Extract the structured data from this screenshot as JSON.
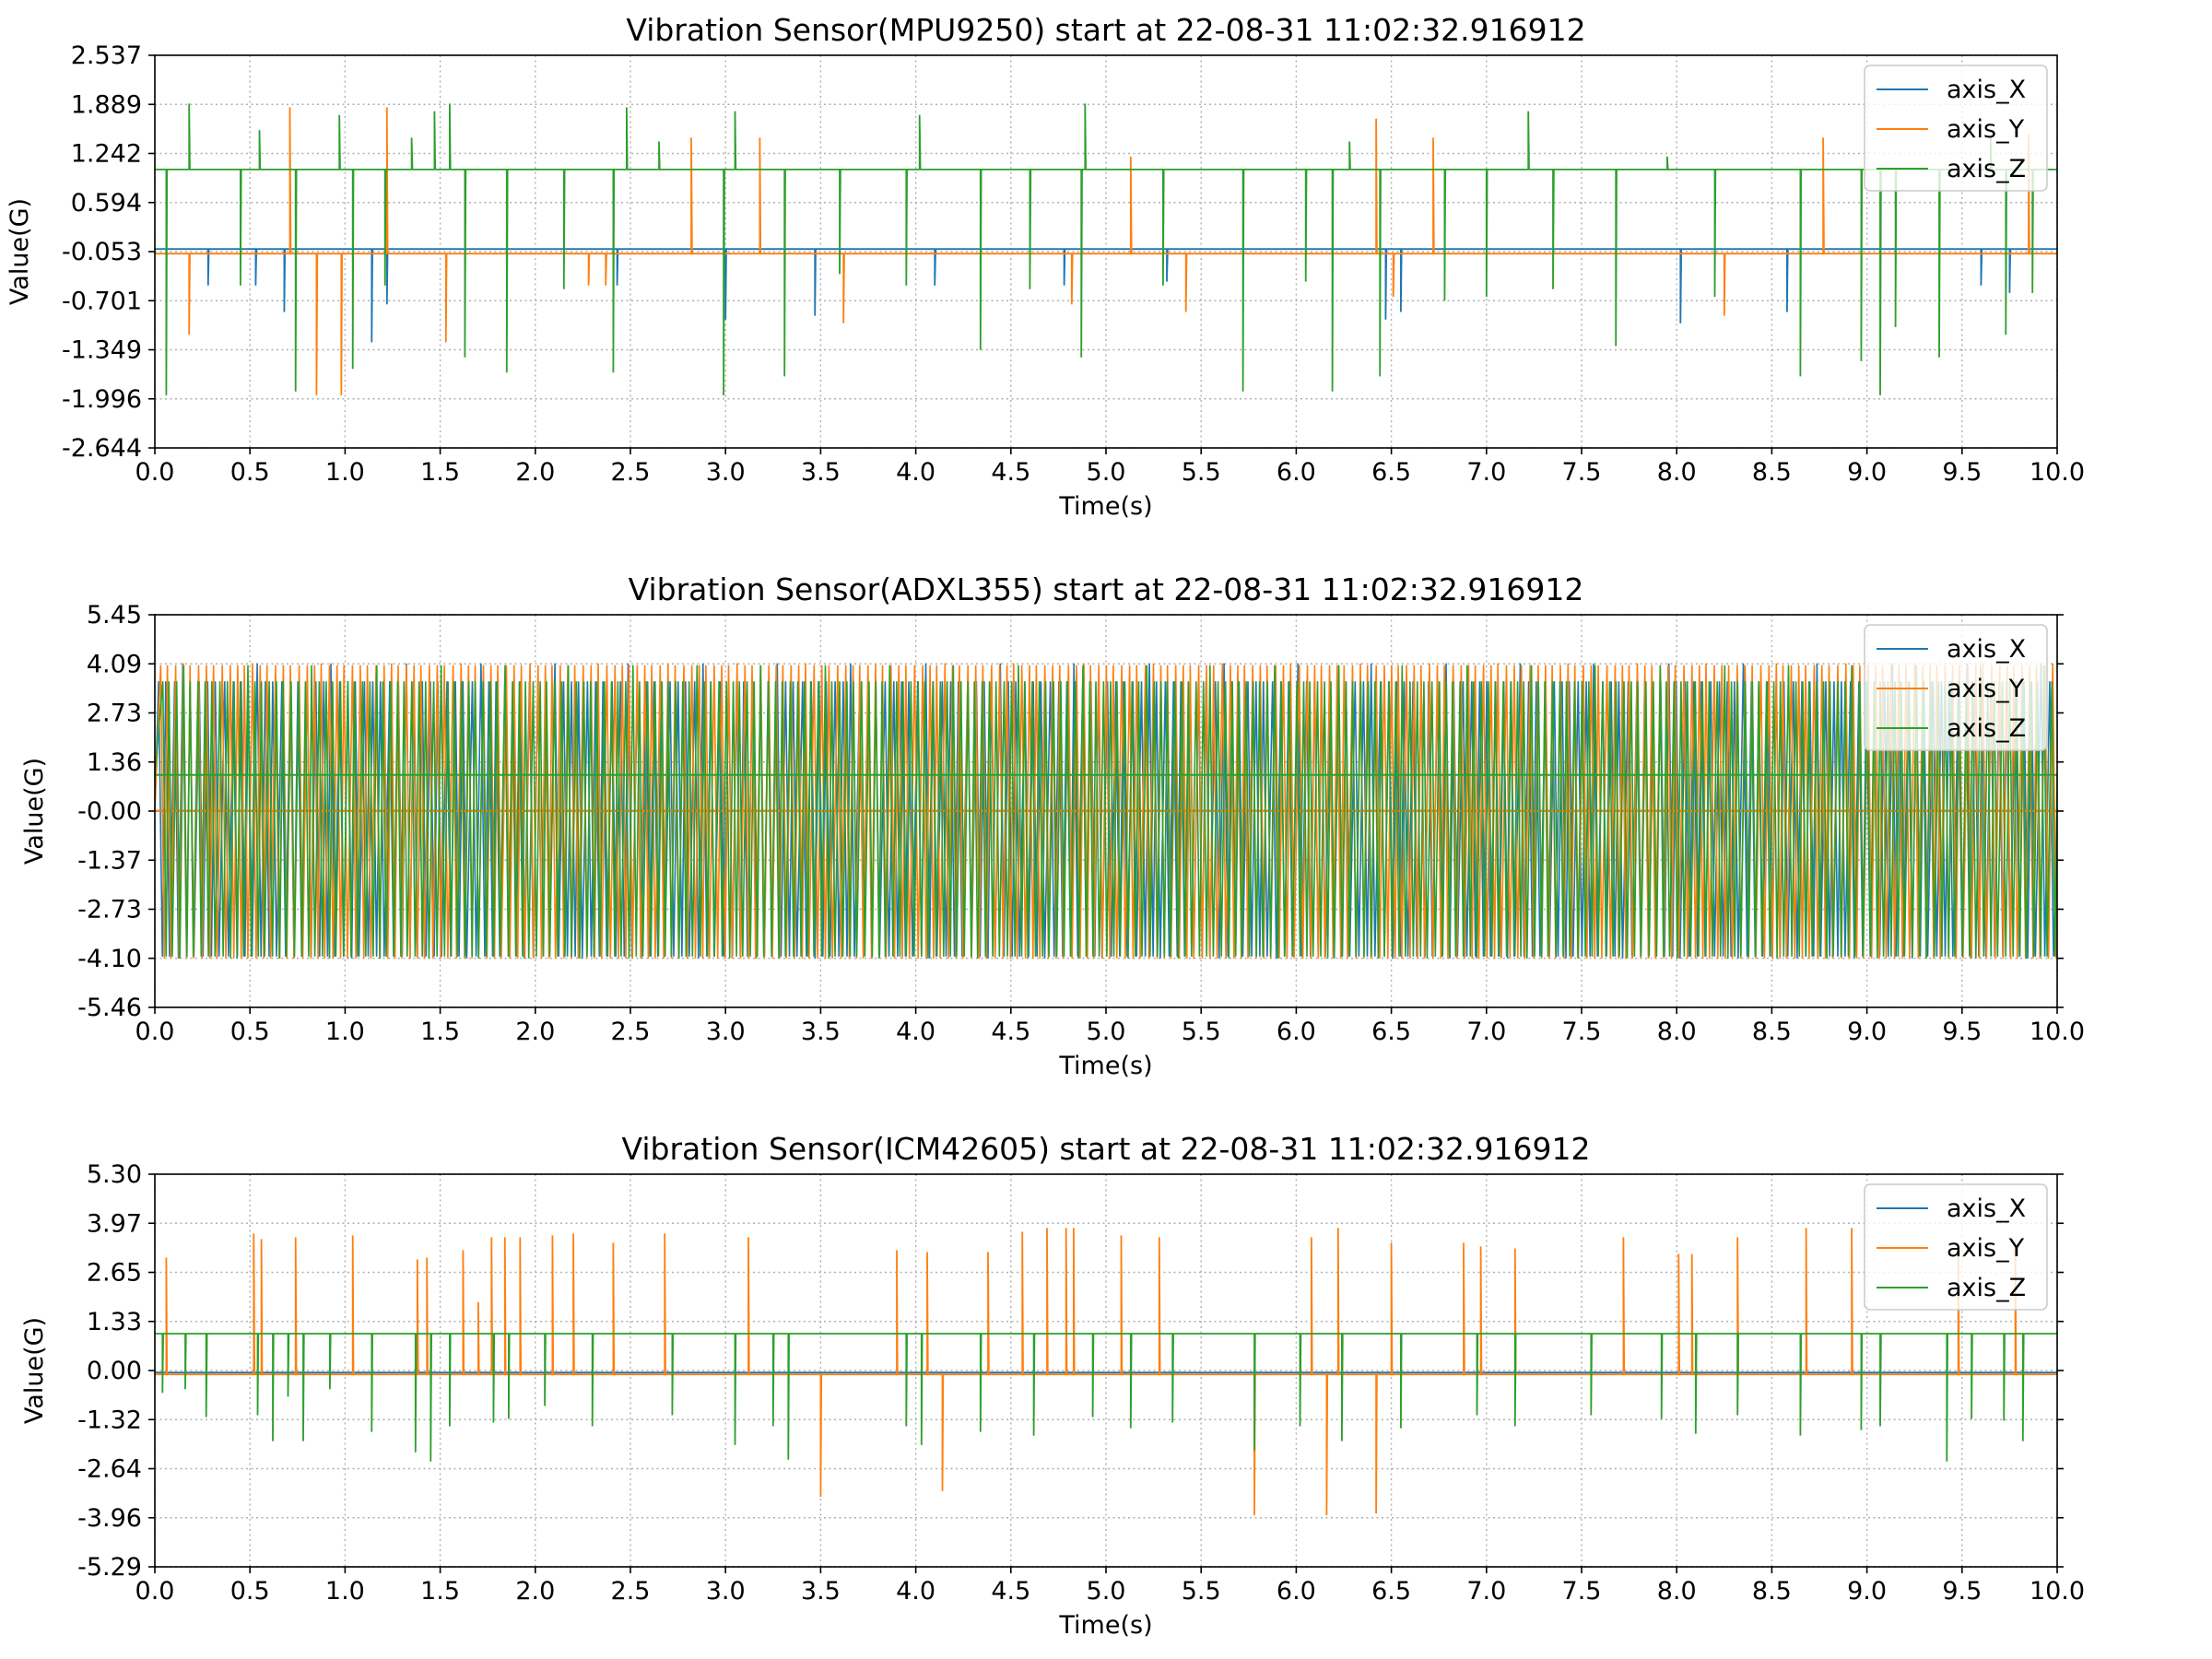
{
  "chart_data": [
    {
      "type": "line",
      "title": "Vibration Sensor(MPU9250) start at 22-08-31 11:02:32.916912",
      "xlabel": "Time(s)",
      "ylabel": "Value(G)",
      "xlim": [
        0.0,
        10.0
      ],
      "ylim": [
        -2.644,
        2.537
      ],
      "xticks": [
        "0.0",
        "0.5",
        "1.0",
        "1.5",
        "2.0",
        "2.5",
        "3.0",
        "3.5",
        "4.0",
        "4.5",
        "5.0",
        "5.5",
        "6.0",
        "6.5",
        "7.0",
        "7.5",
        "8.0",
        "8.5",
        "9.0",
        "9.5",
        "10.0"
      ],
      "yticks": [
        "2.537",
        "1.889",
        "1.242",
        "0.594",
        "-0.053",
        "-0.701",
        "-1.349",
        "-1.996",
        "-2.644"
      ],
      "grid": true,
      "legend_position": "top-right",
      "series": [
        {
          "name": "axis_X",
          "color": "#1f77b4",
          "baseline": -0.02,
          "spikes": [
            [
              0.28,
              -0.5
            ],
            [
              0.53,
              -0.5
            ],
            [
              0.68,
              -0.85
            ],
            [
              1.14,
              -1.25
            ],
            [
              1.22,
              -0.75
            ],
            [
              2.43,
              -0.5
            ],
            [
              3.0,
              -0.95
            ],
            [
              3.47,
              -0.9
            ],
            [
              4.1,
              -0.5
            ],
            [
              4.78,
              -0.5
            ],
            [
              5.32,
              -0.45
            ],
            [
              6.47,
              -0.95
            ],
            [
              6.55,
              -0.85
            ],
            [
              8.02,
              -1.0
            ],
            [
              8.58,
              -0.85
            ],
            [
              9.6,
              -0.5
            ],
            [
              9.75,
              -0.6
            ]
          ]
        },
        {
          "name": "axis_Y",
          "color": "#ff7f0e",
          "baseline": -0.08,
          "spikes": [
            [
              0.18,
              -1.15
            ],
            [
              0.71,
              1.85
            ],
            [
              0.85,
              -1.95
            ],
            [
              0.98,
              -1.95
            ],
            [
              1.22,
              1.85
            ],
            [
              1.53,
              -1.25
            ],
            [
              2.28,
              -0.5
            ],
            [
              2.37,
              -0.5
            ],
            [
              2.82,
              1.45
            ],
            [
              3.18,
              1.45
            ],
            [
              3.62,
              -1.0
            ],
            [
              4.82,
              -0.75
            ],
            [
              5.13,
              1.2
            ],
            [
              5.42,
              -0.85
            ],
            [
              6.42,
              1.7
            ],
            [
              6.51,
              -0.65
            ],
            [
              6.72,
              1.45
            ],
            [
              8.25,
              -0.9
            ],
            [
              8.77,
              1.45
            ],
            [
              9.85,
              1.5
            ]
          ]
        },
        {
          "name": "axis_Z",
          "color": "#2ca02c",
          "baseline": 1.03,
          "spikes": [
            [
              0.06,
              -1.95
            ],
            [
              0.18,
              1.9
            ],
            [
              0.45,
              -0.5
            ],
            [
              0.55,
              1.55
            ],
            [
              0.74,
              -1.9
            ],
            [
              0.97,
              1.75
            ],
            [
              1.04,
              -1.6
            ],
            [
              1.21,
              -0.5
            ],
            [
              1.35,
              1.45
            ],
            [
              1.47,
              1.8
            ],
            [
              1.55,
              1.9
            ],
            [
              1.63,
              -1.45
            ],
            [
              1.85,
              -1.65
            ],
            [
              2.15,
              -0.55
            ],
            [
              2.41,
              -1.65
            ],
            [
              2.48,
              1.85
            ],
            [
              2.65,
              1.4
            ],
            [
              2.99,
              -1.95
            ],
            [
              3.05,
              1.8
            ],
            [
              3.31,
              -1.7
            ],
            [
              3.6,
              -0.35
            ],
            [
              3.95,
              -0.5
            ],
            [
              4.02,
              1.75
            ],
            [
              4.34,
              -1.35
            ],
            [
              4.6,
              -0.55
            ],
            [
              4.87,
              -1.45
            ],
            [
              4.89,
              1.9
            ],
            [
              5.3,
              -0.5
            ],
            [
              5.72,
              -1.9
            ],
            [
              6.05,
              -0.45
            ],
            [
              6.19,
              -1.9
            ],
            [
              6.28,
              1.4
            ],
            [
              6.44,
              -1.7
            ],
            [
              6.78,
              -0.7
            ],
            [
              7.0,
              -0.65
            ],
            [
              7.22,
              1.8
            ],
            [
              7.35,
              -0.55
            ],
            [
              7.68,
              -1.3
            ],
            [
              7.95,
              1.2
            ],
            [
              8.2,
              -0.65
            ],
            [
              8.65,
              -1.7
            ],
            [
              8.97,
              -1.5
            ],
            [
              9.07,
              -1.95
            ],
            [
              9.15,
              -1.05
            ],
            [
              9.38,
              -1.45
            ],
            [
              9.65,
              1.45
            ],
            [
              9.73,
              -1.15
            ],
            [
              9.87,
              -0.6
            ]
          ]
        }
      ]
    },
    {
      "type": "line",
      "title": "Vibration Sensor(ADXL355) start at 22-08-31 11:02:32.916912",
      "xlabel": "Time(s)",
      "ylabel": "Value(G)",
      "xlim": [
        0.0,
        10.0
      ],
      "ylim": [
        -5.46,
        5.45
      ],
      "xticks": [
        "0.0",
        "0.5",
        "1.0",
        "1.5",
        "2.0",
        "2.5",
        "3.0",
        "3.5",
        "4.0",
        "4.5",
        "5.0",
        "5.5",
        "6.0",
        "6.5",
        "7.0",
        "7.5",
        "8.0",
        "8.5",
        "9.0",
        "9.5",
        "10.0"
      ],
      "yticks": [
        "5.45",
        "4.09",
        "2.73",
        "1.36",
        "-0.00",
        "-1.37",
        "-2.73",
        "-4.10",
        "-5.46"
      ],
      "grid": true,
      "legend_position": "top-right",
      "series": [
        {
          "name": "axis_X",
          "color": "#1f77b4",
          "baseline": 0.0,
          "oscillation": {
            "period": 0.044,
            "max": 3.6,
            "min": -4.05,
            "peak_max": 4.1,
            "peak_min": -4.1
          }
        },
        {
          "name": "axis_Y",
          "color": "#ff7f0e",
          "baseline": 0.0,
          "oscillation": {
            "period": 0.041,
            "max": 4.05,
            "min": -4.1,
            "peak_max": 4.1,
            "peak_min": -4.1
          }
        },
        {
          "name": "axis_Z",
          "color": "#2ca02c",
          "baseline": 1.0,
          "oscillation": {
            "period": 0.038,
            "max": 3.6,
            "min": -4.05,
            "peak_max": 4.05,
            "peak_min": -4.1
          }
        }
      ]
    },
    {
      "type": "line",
      "title": "Vibration Sensor(ICM42605) start at 22-08-31 11:02:32.916912",
      "xlabel": "Time(s)",
      "ylabel": "Value(G)",
      "xlim": [
        0.0,
        10.0
      ],
      "ylim": [
        -5.29,
        5.3
      ],
      "xticks": [
        "0.0",
        "0.5",
        "1.0",
        "1.5",
        "2.0",
        "2.5",
        "3.0",
        "3.5",
        "4.0",
        "4.5",
        "5.0",
        "5.5",
        "6.0",
        "6.5",
        "7.0",
        "7.5",
        "8.0",
        "8.5",
        "9.0",
        "9.5",
        "10.0"
      ],
      "yticks": [
        "5.30",
        "3.97",
        "2.65",
        "1.33",
        "0.00",
        "-1.32",
        "-2.64",
        "-3.96",
        "-5.29"
      ],
      "grid": true,
      "legend_position": "top-right",
      "series": [
        {
          "name": "axis_X",
          "color": "#1f77b4",
          "baseline": -0.05,
          "spikes": []
        },
        {
          "name": "axis_Y",
          "color": "#ff7f0e",
          "baseline": -0.1,
          "spikes": [
            [
              0.06,
              3.05
            ],
            [
              0.52,
              3.7
            ],
            [
              0.56,
              3.55
            ],
            [
              0.74,
              3.6
            ],
            [
              1.04,
              3.65
            ],
            [
              1.38,
              3.0
            ],
            [
              1.43,
              3.05
            ],
            [
              1.62,
              3.25
            ],
            [
              1.7,
              1.85
            ],
            [
              1.77,
              3.6
            ],
            [
              1.84,
              3.6
            ],
            [
              1.92,
              3.6
            ],
            [
              2.09,
              3.65
            ],
            [
              2.2,
              3.7
            ],
            [
              2.41,
              3.45
            ],
            [
              2.68,
              3.7
            ],
            [
              3.12,
              3.6
            ],
            [
              3.5,
              -3.4
            ],
            [
              3.9,
              3.25
            ],
            [
              4.06,
              3.2
            ],
            [
              4.14,
              -3.25
            ],
            [
              4.38,
              3.2
            ],
            [
              4.56,
              3.75
            ],
            [
              4.69,
              3.85
            ],
            [
              4.79,
              3.85
            ],
            [
              4.83,
              3.85
            ],
            [
              5.08,
              3.65
            ],
            [
              5.28,
              3.6
            ],
            [
              5.78,
              -3.9
            ],
            [
              6.08,
              3.6
            ],
            [
              6.16,
              -3.9
            ],
            [
              6.22,
              3.85
            ],
            [
              6.42,
              -3.85
            ],
            [
              6.5,
              3.45
            ],
            [
              6.88,
              3.45
            ],
            [
              6.97,
              3.35
            ],
            [
              7.15,
              3.3
            ],
            [
              7.72,
              3.6
            ],
            [
              8.01,
              3.15
            ],
            [
              8.08,
              3.15
            ],
            [
              8.32,
              3.6
            ],
            [
              8.68,
              3.85
            ],
            [
              8.92,
              3.85
            ],
            [
              9.48,
              3.45
            ],
            [
              9.78,
              3.5
            ]
          ]
        },
        {
          "name": "axis_Z",
          "color": "#2ca02c",
          "baseline": 1.0,
          "spikes": [
            [
              0.04,
              -0.6
            ],
            [
              0.16,
              -0.5
            ],
            [
              0.27,
              -1.25
            ],
            [
              0.54,
              -1.2
            ],
            [
              0.62,
              -1.9
            ],
            [
              0.7,
              -0.7
            ],
            [
              0.78,
              -1.9
            ],
            [
              0.92,
              -0.5
            ],
            [
              1.14,
              -1.65
            ],
            [
              1.37,
              -2.2
            ],
            [
              1.45,
              -2.45
            ],
            [
              1.55,
              -1.5
            ],
            [
              1.78,
              -1.4
            ],
            [
              1.86,
              -1.3
            ],
            [
              2.05,
              -0.95
            ],
            [
              2.3,
              -1.5
            ],
            [
              2.72,
              -1.2
            ],
            [
              3.05,
              -2.0
            ],
            [
              3.25,
              -1.5
            ],
            [
              3.33,
              -2.4
            ],
            [
              3.95,
              -1.5
            ],
            [
              4.03,
              -2.0
            ],
            [
              4.34,
              -1.65
            ],
            [
              4.62,
              -1.75
            ],
            [
              4.93,
              -1.25
            ],
            [
              5.13,
              -1.55
            ],
            [
              5.35,
              -1.4
            ],
            [
              5.78,
              -2.15
            ],
            [
              6.02,
              -1.5
            ],
            [
              6.24,
              -1.9
            ],
            [
              6.55,
              -1.55
            ],
            [
              6.95,
              -1.2
            ],
            [
              7.15,
              -1.5
            ],
            [
              7.55,
              -1.2
            ],
            [
              7.92,
              -1.3
            ],
            [
              8.1,
              -1.7
            ],
            [
              8.32,
              -1.2
            ],
            [
              8.65,
              -1.75
            ],
            [
              8.97,
              -1.6
            ],
            [
              9.07,
              -1.5
            ],
            [
              9.42,
              -2.45
            ],
            [
              9.55,
              -1.3
            ],
            [
              9.72,
              -1.35
            ],
            [
              9.82,
              -1.9
            ]
          ]
        }
      ]
    }
  ]
}
